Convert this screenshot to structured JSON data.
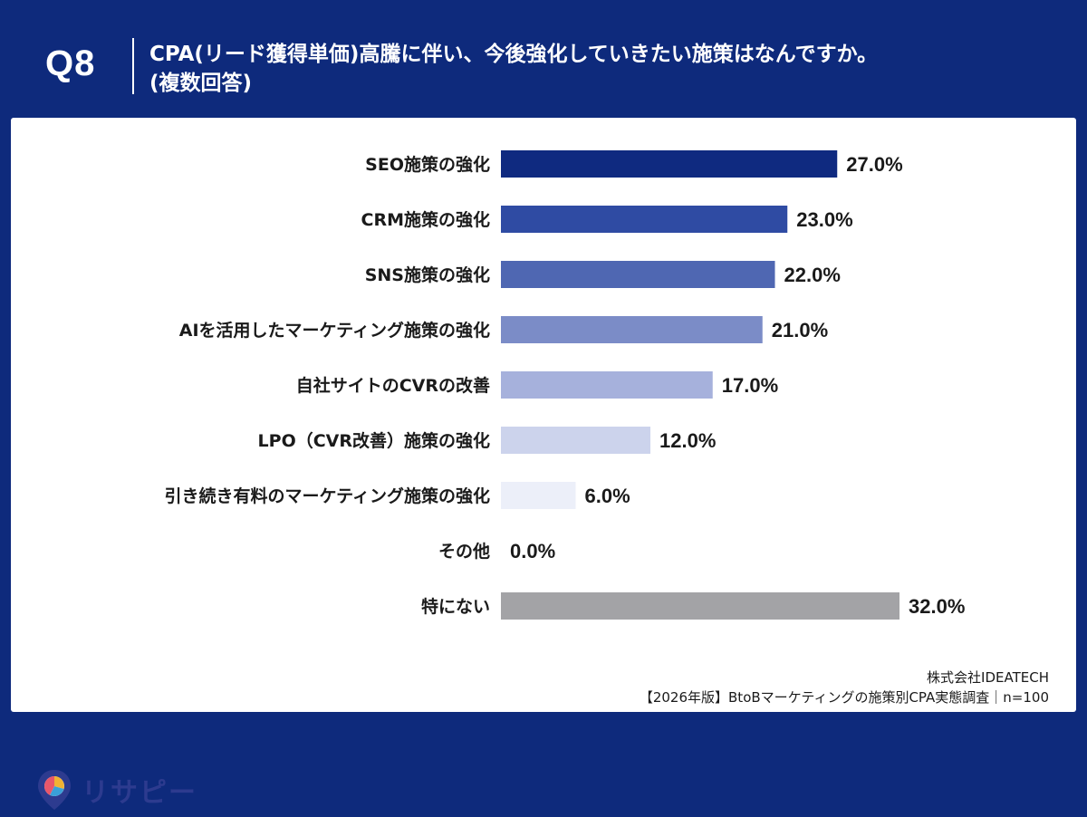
{
  "header": {
    "qnum": "Q8",
    "question_line1": "CPA(リード獲得単価)高騰に伴い、今後強化していきたい施策はなんですか。",
    "question_line2": "(複数回答)"
  },
  "brand": {
    "logo_text": "リサピー"
  },
  "footer": {
    "company": "株式会社IDEATECH",
    "survey": "【2026年版】BtoBマーケティングの施策別CPA実態調査｜n=100"
  },
  "colors": {
    "header_bg": "#0e2a7c",
    "panel_bg": "#ffffff",
    "bars": [
      "#0f2a80",
      "#2f4ba3",
      "#4f67b2",
      "#7b8cc7",
      "#a6b1dc",
      "#ccd3ec",
      "#eceff9",
      "#ffffff",
      "#a3a3a6"
    ]
  },
  "chart_data": {
    "type": "bar",
    "orientation": "horizontal",
    "categories": [
      "SEO施策の強化",
      "CRM施策の強化",
      "SNS施策の強化",
      "AIを活用したマーケティング施策の強化",
      "自社サイトのCVRの改善",
      "LPO（CVR改善）施策の強化",
      "引き続き有料のマーケティング施策の強化",
      "その他",
      "特にない"
    ],
    "values": [
      27.0,
      23.0,
      22.0,
      21.0,
      17.0,
      12.0,
      6.0,
      0.0,
      32.0
    ],
    "value_labels": [
      "27.0%",
      "23.0%",
      "22.0%",
      "21.0%",
      "17.0%",
      "12.0%",
      "6.0%",
      "0.0%",
      "32.0%"
    ],
    "unit": "%",
    "xlim": [
      0,
      32
    ],
    "grid": false,
    "legend": "none"
  }
}
